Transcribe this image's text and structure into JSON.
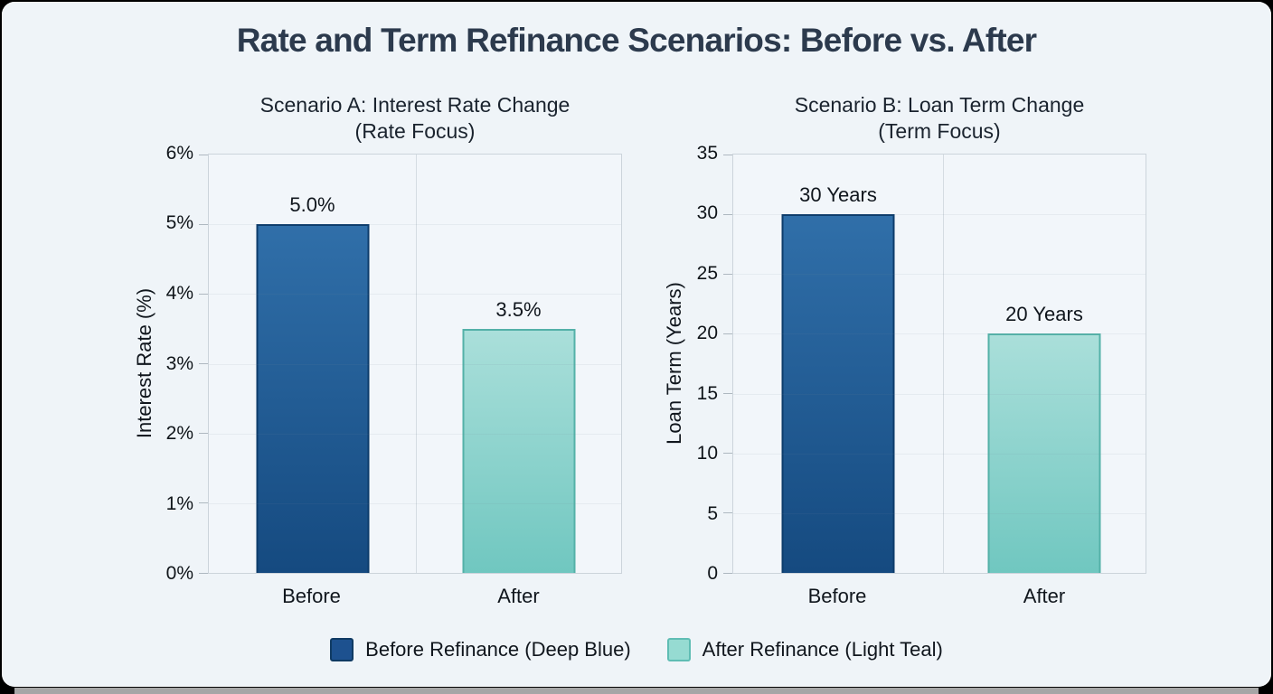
{
  "page": {
    "title": "Rate and Term Refinance Scenarios: Before vs. After"
  },
  "chart_data": [
    {
      "type": "bar",
      "title": "Scenario A: Interest Rate Change (Rate Focus)",
      "title_lines": [
        "Scenario A: Interest Rate Change",
        "(Rate Focus)"
      ],
      "ylabel": "Interest Rate (%)",
      "xlabel": "",
      "categories": [
        "Before",
        "After"
      ],
      "values": [
        5.0,
        3.5
      ],
      "bar_labels": [
        "5.0%",
        "3.5%"
      ],
      "ylim": [
        0,
        6
      ],
      "yticks": [
        0,
        1,
        2,
        3,
        4,
        5,
        6
      ],
      "ytick_labels": [
        "0%",
        "1%",
        "2%",
        "3%",
        "4%",
        "5%",
        "6%"
      ],
      "grid": true,
      "legend_position": "none"
    },
    {
      "type": "bar",
      "title": "Scenario B: Loan Term Change (Term Focus)",
      "title_lines": [
        "Scenario B: Loan Term Change",
        "(Term Focus)"
      ],
      "ylabel": "Loan Term (Years)",
      "xlabel": "",
      "categories": [
        "Before",
        "After"
      ],
      "values": [
        30,
        20
      ],
      "bar_labels": [
        "30 Years",
        "20 Years"
      ],
      "ylim": [
        0,
        35
      ],
      "yticks": [
        0,
        5,
        10,
        15,
        20,
        25,
        30,
        35
      ],
      "ytick_labels": [
        "0",
        "5",
        "10",
        "15",
        "20",
        "25",
        "30",
        "35"
      ],
      "grid": true,
      "legend_position": "none"
    }
  ],
  "legend": {
    "items": [
      {
        "label": "Before Refinance (Deep Blue)",
        "fill": "#1d518f",
        "border": "#0f3a63"
      },
      {
        "label": "After Refinance (Light Teal)",
        "fill": "#96dbd2",
        "border": "#5fbdb4"
      }
    ]
  },
  "colors": {
    "card_background": "#eff4f8",
    "plot_background": "#f2f6fa",
    "title_color": "#2c3a4d",
    "series": [
      {
        "name": "deep-blue",
        "top": "#306fa9",
        "bottom": "#154a80",
        "border": "#0d3c6b"
      },
      {
        "name": "light-teal",
        "top": "#aadfda",
        "bottom": "#70c7c0",
        "border": "#54b1a8"
      }
    ]
  }
}
